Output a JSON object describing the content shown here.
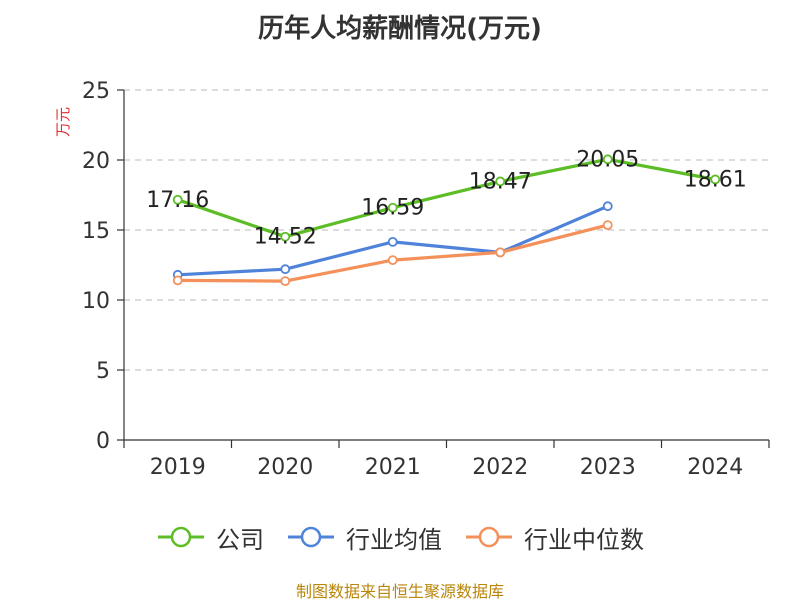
{
  "title": "历年人均薪酬情况(万元)",
  "source_note": "制图数据来自恒生聚源数据库",
  "chart_data": {
    "type": "line",
    "title": "历年人均薪酬情况(万元)",
    "xlabel": "",
    "ylabel": "万元",
    "ylim": [
      0,
      25
    ],
    "yticks": [
      0,
      5,
      10,
      15,
      20,
      25
    ],
    "categories": [
      "2019",
      "2020",
      "2021",
      "2022",
      "2023",
      "2024"
    ],
    "grid": true,
    "legend_position": "bottom",
    "series": [
      {
        "name": "公司",
        "color": "#5cbd26",
        "values": [
          17.16,
          14.52,
          16.59,
          18.47,
          20.05,
          18.61
        ],
        "labels": [
          "17.16",
          "14.52",
          "16.59",
          "18.47",
          "20.05",
          "18.61"
        ]
      },
      {
        "name": "行业均值",
        "color": "#4f82d9",
        "values": [
          11.8,
          12.2,
          14.15,
          13.4,
          16.7,
          null
        ]
      },
      {
        "name": "行业中位数",
        "color": "#f4905a",
        "values": [
          11.4,
          11.35,
          12.85,
          13.4,
          15.35,
          null
        ]
      }
    ]
  }
}
